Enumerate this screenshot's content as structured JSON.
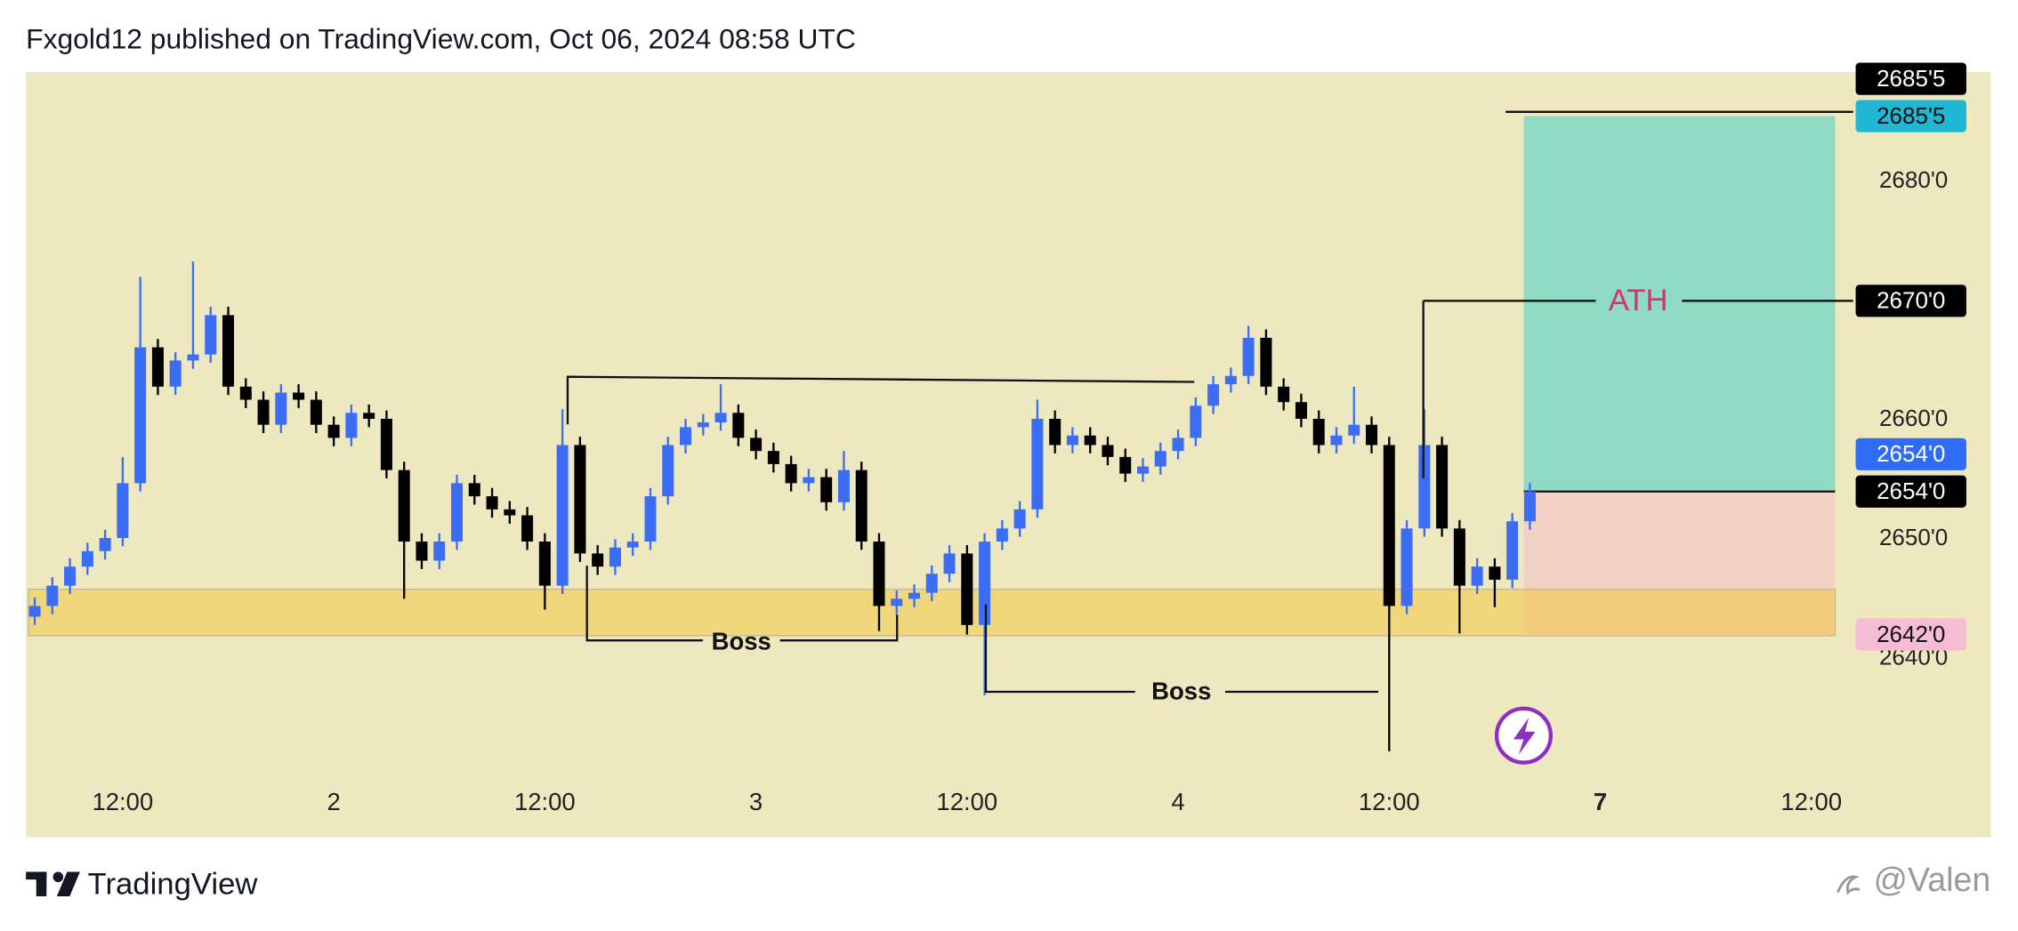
{
  "header": {
    "title": "Fxgold12 published on TradingView.com, Oct 06, 2024 08:58 UTC"
  },
  "footer": {
    "brand": "TradingView",
    "watermark": "@Valen"
  },
  "chart_data": {
    "type": "candlestick",
    "up_color": "#3b6ef5",
    "down_color": "#000000",
    "background": "#eee8c0",
    "x": [
      7,
      8,
      9,
      10,
      11,
      12,
      13,
      14,
      15,
      16,
      17,
      18,
      19,
      20,
      21,
      22,
      23,
      24,
      25,
      26,
      27,
      28,
      29,
      30,
      31,
      32,
      33,
      34,
      35,
      36,
      37,
      38,
      39,
      40,
      41,
      42,
      43,
      44,
      45,
      46,
      47,
      48,
      49,
      50,
      51,
      52,
      53,
      54,
      55,
      56,
      57,
      58,
      59,
      60,
      61,
      62,
      63,
      64,
      65,
      66,
      67,
      68,
      69,
      70,
      71,
      72,
      73,
      74,
      75,
      76,
      77,
      78,
      79,
      80,
      81,
      82,
      83,
      84,
      85,
      86,
      87,
      88,
      89,
      90,
      91,
      92
    ],
    "open": [
      2643.5,
      2644.4,
      2646.1,
      2647.7,
      2649.0,
      2650.1,
      2654.7,
      2666.1,
      2662.8,
      2665.0,
      2665.5,
      2668.8,
      2662.8,
      2661.7,
      2659.6,
      2662.3,
      2661.7,
      2659.6,
      2658.5,
      2660.6,
      2660.1,
      2655.8,
      2649.8,
      2648.2,
      2649.8,
      2654.7,
      2653.6,
      2652.5,
      2652.0,
      2649.8,
      2646.1,
      2657.9,
      2648.8,
      2647.7,
      2649.3,
      2649.8,
      2653.6,
      2657.9,
      2659.4,
      2659.8,
      2660.6,
      2658.5,
      2657.4,
      2656.3,
      2654.7,
      2655.2,
      2653.1,
      2655.8,
      2649.8,
      2644.4,
      2645.0,
      2645.5,
      2647.1,
      2648.8,
      2642.8,
      2649.8,
      2650.9,
      2652.5,
      2660.1,
      2657.9,
      2658.7,
      2657.9,
      2656.9,
      2655.5,
      2656.1,
      2657.4,
      2658.5,
      2661.2,
      2663.0,
      2663.7,
      2666.9,
      2662.8,
      2661.5,
      2660.1,
      2657.9,
      2658.7,
      2659.6,
      2657.9,
      2644.4,
      2650.9,
      2657.9,
      2650.9,
      2646.1,
      2647.7,
      2646.6,
      2651.5
    ],
    "high": [
      2645.1,
      2646.8,
      2648.4,
      2649.7,
      2650.8,
      2656.9,
      2672.0,
      2666.8,
      2665.7,
      2673.3,
      2669.5,
      2669.5,
      2663.5,
      2662.4,
      2663.0,
      2663.0,
      2662.4,
      2660.3,
      2661.3,
      2661.3,
      2660.8,
      2656.5,
      2650.5,
      2650.5,
      2655.4,
      2655.4,
      2654.3,
      2653.2,
      2652.7,
      2650.5,
      2660.9,
      2658.6,
      2649.5,
      2650.0,
      2650.5,
      2654.3,
      2658.6,
      2660.1,
      2660.5,
      2663.0,
      2661.3,
      2659.2,
      2658.1,
      2657.0,
      2655.9,
      2655.9,
      2657.4,
      2656.5,
      2650.5,
      2645.7,
      2646.2,
      2647.8,
      2649.5,
      2649.5,
      2650.5,
      2651.6,
      2653.2,
      2661.7,
      2660.8,
      2659.4,
      2659.4,
      2658.6,
      2657.6,
      2656.8,
      2658.1,
      2659.2,
      2661.9,
      2663.7,
      2664.4,
      2667.9,
      2667.6,
      2663.5,
      2662.2,
      2660.8,
      2659.4,
      2662.8,
      2660.3,
      2658.6,
      2651.6,
      2660.9,
      2658.6,
      2651.6,
      2648.4,
      2648.4,
      2652.2,
      2654.7
    ],
    "low": [
      2642.8,
      2643.7,
      2645.4,
      2647.0,
      2648.3,
      2649.4,
      2654.0,
      2662.1,
      2662.1,
      2664.3,
      2664.8,
      2662.1,
      2661.0,
      2658.9,
      2658.9,
      2661.0,
      2658.9,
      2657.8,
      2657.8,
      2659.4,
      2655.1,
      2645.0,
      2647.5,
      2647.5,
      2649.1,
      2652.9,
      2651.8,
      2651.3,
      2649.1,
      2644.1,
      2645.4,
      2648.1,
      2647.0,
      2647.0,
      2648.6,
      2649.1,
      2652.9,
      2657.2,
      2658.7,
      2659.1,
      2657.8,
      2656.7,
      2655.6,
      2654.0,
      2654.0,
      2652.4,
      2652.4,
      2649.1,
      2642.3,
      2643.7,
      2644.3,
      2644.8,
      2646.4,
      2642.0,
      2636.9,
      2649.1,
      2650.2,
      2651.8,
      2657.2,
      2657.2,
      2657.2,
      2656.2,
      2654.8,
      2654.8,
      2655.4,
      2656.7,
      2657.8,
      2660.5,
      2662.3,
      2663.0,
      2662.1,
      2660.8,
      2659.4,
      2657.2,
      2657.2,
      2658.0,
      2657.2,
      2632.2,
      2643.7,
      2650.2,
      2650.2,
      2642.1,
      2645.4,
      2644.3,
      2645.9,
      2650.8
    ],
    "close": [
      2644.4,
      2646.1,
      2647.7,
      2649.0,
      2650.1,
      2654.7,
      2666.1,
      2662.8,
      2665.0,
      2665.5,
      2668.8,
      2662.8,
      2661.7,
      2659.6,
      2662.3,
      2661.7,
      2659.6,
      2658.5,
      2660.6,
      2660.1,
      2655.8,
      2649.8,
      2648.2,
      2649.8,
      2654.7,
      2653.6,
      2652.5,
      2652.0,
      2649.8,
      2646.1,
      2657.9,
      2648.8,
      2647.7,
      2649.3,
      2649.8,
      2653.6,
      2657.9,
      2659.4,
      2659.8,
      2660.6,
      2658.5,
      2657.4,
      2656.3,
      2654.7,
      2655.2,
      2653.1,
      2655.8,
      2649.8,
      2644.4,
      2645.0,
      2645.5,
      2647.1,
      2648.8,
      2642.8,
      2649.8,
      2650.9,
      2652.5,
      2660.1,
      2657.9,
      2658.7,
      2657.9,
      2656.9,
      2655.5,
      2656.1,
      2657.4,
      2658.5,
      2661.2,
      2663.0,
      2663.7,
      2666.9,
      2662.8,
      2661.5,
      2660.1,
      2657.9,
      2658.7,
      2659.6,
      2657.9,
      2644.4,
      2650.9,
      2657.9,
      2650.9,
      2646.1,
      2647.7,
      2646.6,
      2651.5,
      2654.0
    ],
    "xlim": [
      6.5,
      118.2
    ],
    "ylim": [
      2625.0,
      2689.2
    ],
    "xticks": [
      {
        "value": 12,
        "label": "12:00"
      },
      {
        "value": 24,
        "label": "2"
      },
      {
        "value": 36,
        "label": "12:00"
      },
      {
        "value": 48,
        "label": "3"
      },
      {
        "value": 60,
        "label": "12:00"
      },
      {
        "value": 72,
        "label": "4"
      },
      {
        "value": 84,
        "label": "12:00"
      },
      {
        "value": 96,
        "label": "7"
      },
      {
        "value": 108,
        "label": "12:00"
      }
    ],
    "yticks": [
      {
        "value": 2640,
        "label": "2640'0"
      },
      {
        "value": 2650,
        "label": "2650'0"
      },
      {
        "value": 2660,
        "label": "2660'0"
      },
      {
        "value": 2680,
        "label": "2680'0"
      }
    ],
    "price_labels": [
      {
        "value": 2685.5,
        "label": "2685'5",
        "color": "#1fb7d4",
        "text_color": "#111111"
      },
      {
        "value": 2685.5,
        "label": "2685'5",
        "color": "#000000",
        "text_color": "#ffffff"
      },
      {
        "value": 2654.0,
        "label": "2654'0",
        "color": "#000000",
        "text_color": "#ffffff"
      },
      {
        "value": 2654.0,
        "label": "2654'0",
        "color": "#2f6cf6",
        "text_color": "#ffffff"
      },
      {
        "value": 2670.0,
        "label": "2670'0",
        "color": "#000000",
        "text_color": "#ffffff"
      },
      {
        "value": 2642.0,
        "label": "2642'0",
        "color": "#f6bcd3",
        "text_color": "#111111"
      }
    ],
    "demand_zone": [
      2641.9,
      2645.8
    ],
    "annotations": [
      "Boss",
      "Boss",
      "ATH"
    ]
  }
}
